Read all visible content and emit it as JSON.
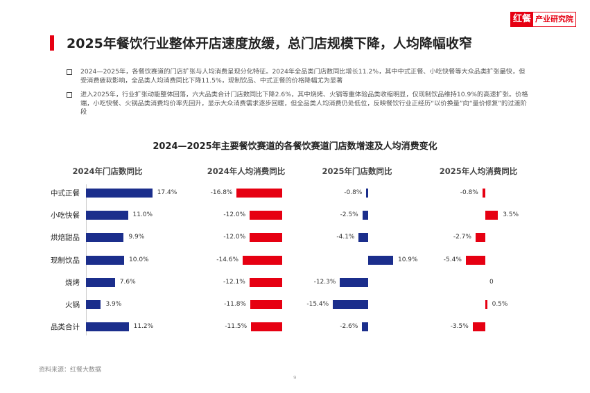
{
  "logo": {
    "part1": "红餐",
    "part2": "产业研究院"
  },
  "title": "2025年餐饮行业整体开店速度放缓，总门店规模下降，人均降幅收窄",
  "bullets": [
    "2024—2025年，各餐饮赛道的门店扩张与人均消费呈现分化特征。2024年全品类门店数同比增长11.2%，其中中式正餐、小吃快餐等大众品类扩张最快，但受消费疲软影响，全品类人均消费同比下降11.5%，现制饮品、中式正餐的价格降幅尤为显著",
    "进入2025年，行业扩张动能整体回落，六大品类合计门店数同比下降2.6%，其中烧烤、火锅等重体验品类收缩明显，仅现制饮品维持10.9%的高速扩张。价格端，小吃快餐、火锅品类消费均价率先回升，显示大众消费需求逐步回暖，但全品类人均消费仍处低位，反映餐饮行业正经历“以价换量”向“量价修复”的过渡阶段"
  ],
  "source": "资料来源：红餐大数据",
  "page_number": "9",
  "chart_data": {
    "type": "bar",
    "orientation": "horizontal",
    "title": "2024—2025年主要餐饮赛道的各餐饮赛道门店数增速及人均消费变化",
    "categories": [
      "中式正餐",
      "小吃快餐",
      "烘焙甜品",
      "现制饮品",
      "烧烤",
      "火锅",
      "品类合计"
    ],
    "unit": "%",
    "series": [
      {
        "name": "2024年门店数同比",
        "color": "#1b2e8c",
        "values": [
          17.4,
          11.0,
          9.9,
          10.0,
          7.6,
          3.9,
          11.2
        ],
        "labels": [
          "17.4%",
          "11.0%",
          "9.9%",
          "10.0%",
          "7.6%",
          "3.9%",
          "11.2%"
        ]
      },
      {
        "name": "2024年人均消费同比",
        "color": "#e60012",
        "values": [
          -16.8,
          -12.0,
          -12.0,
          -14.6,
          -12.1,
          -11.8,
          -11.5
        ],
        "labels": [
          "-16.8%",
          "-12.0%",
          "-12.0%",
          "-14.6%",
          "-12.1%",
          "-11.8%",
          "-11.5%"
        ]
      },
      {
        "name": "2025年门店数同比",
        "color": "#1b2e8c",
        "values": [
          -0.8,
          -2.5,
          -4.1,
          10.9,
          -12.3,
          -15.4,
          -2.6
        ],
        "labels": [
          "-0.8%",
          "-2.5%",
          "-4.1%",
          "10.9%",
          "-12.3%",
          "-15.4%",
          "-2.6%"
        ]
      },
      {
        "name": "2025年人均消费同比",
        "color": "#e60012",
        "values": [
          -0.8,
          3.5,
          -2.7,
          -5.4,
          0,
          0.5,
          -3.5
        ],
        "labels": [
          "-0.8%",
          "3.5%",
          "-2.7%",
          "-5.4%",
          "0",
          "0.5%",
          "-3.5%"
        ]
      }
    ]
  }
}
